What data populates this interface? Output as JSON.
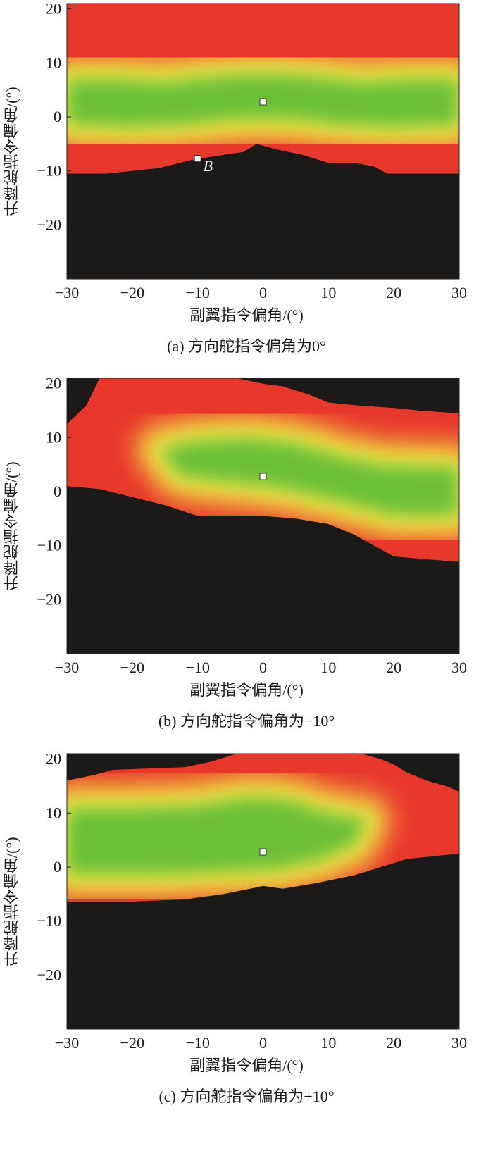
{
  "chart_data": [
    {
      "type": "heatmap",
      "caption": "(a) 方向舵指令偏角为0°",
      "xlabel": "副翼指令偏角/(°)",
      "ylabel": "升降舵指令偏角/(°)",
      "xlim": [
        -30,
        30
      ],
      "ylim": [
        -30,
        21
      ],
      "xticks": [
        -30,
        -20,
        -10,
        0,
        10,
        20,
        30
      ],
      "yticks": [
        -20,
        -10,
        0,
        10,
        20
      ],
      "colors": {
        "center": "#6cbf38",
        "mid": "#f2ea44",
        "outer": "#e8382c",
        "outside": "#1c1a19"
      },
      "upper_boundary": [
        [
          -30,
          21
        ],
        [
          30,
          21
        ]
      ],
      "lower_boundary": [
        [
          -30,
          -10.5
        ],
        [
          -24,
          -10.5
        ],
        [
          -16,
          -9.5
        ],
        [
          -11,
          -8
        ],
        [
          -6,
          -7
        ],
        [
          -3,
          -6.5
        ],
        [
          -1,
          -5
        ],
        [
          2,
          -6
        ],
        [
          6,
          -7
        ],
        [
          10,
          -8.5
        ],
        [
          14,
          -8.5
        ],
        [
          17,
          -9.2
        ],
        [
          19,
          -10.5
        ],
        [
          30,
          -10.5
        ]
      ],
      "green_core": [
        [
          -30,
          7
        ],
        [
          -22,
          7
        ],
        [
          -15,
          6.5
        ],
        [
          -8,
          7.5
        ],
        [
          0,
          8
        ],
        [
          8,
          7.5
        ],
        [
          15,
          6.5
        ],
        [
          22,
          7
        ],
        [
          30,
          7
        ],
        [
          30,
          -1.5
        ],
        [
          20,
          -2
        ],
        [
          12,
          -1.5
        ],
        [
          4,
          -0.5
        ],
        [
          0,
          -0.5
        ],
        [
          -4,
          -0.5
        ],
        [
          -12,
          -1.5
        ],
        [
          -20,
          -2
        ],
        [
          -30,
          -1.5
        ]
      ],
      "markers": [
        {
          "x": 0,
          "y": 2.8
        },
        {
          "x": -10,
          "y": -7.7,
          "label": "B"
        }
      ]
    },
    {
      "type": "heatmap",
      "caption": "(b) 方向舵指令偏角为−10°",
      "xlabel": "副翼指令偏角/(°)",
      "ylabel": "升降舵指令偏角/(°)",
      "xlim": [
        -30,
        30
      ],
      "ylim": [
        -30,
        21
      ],
      "xticks": [
        -30,
        -20,
        -10,
        0,
        10,
        20,
        30
      ],
      "yticks": [
        -20,
        -10,
        0,
        10,
        20
      ],
      "colors": {
        "center": "#6cbf38",
        "mid": "#f2ea44",
        "outer": "#e8382c",
        "outside": "#1c1a19"
      },
      "upper_boundary": [
        [
          -30,
          12.5
        ],
        [
          -27,
          16
        ],
        [
          -25,
          21
        ],
        [
          -4,
          21
        ],
        [
          0,
          20
        ],
        [
          3,
          19.5
        ],
        [
          7,
          18
        ],
        [
          10,
          16.5
        ],
        [
          14,
          16
        ],
        [
          20,
          15.5
        ],
        [
          24,
          15
        ],
        [
          30,
          14.5
        ]
      ],
      "lower_boundary": [
        [
          -30,
          1
        ],
        [
          -25,
          0.5
        ],
        [
          -20,
          -1
        ],
        [
          -15,
          -2.5
        ],
        [
          -10,
          -4.5
        ],
        [
          0,
          -4.5
        ],
        [
          5,
          -5
        ],
        [
          10,
          -6
        ],
        [
          14,
          -8
        ],
        [
          17,
          -10
        ],
        [
          20,
          -12
        ],
        [
          30,
          -13
        ]
      ],
      "green_core": [
        [
          -16,
          8
        ],
        [
          -10,
          9.5
        ],
        [
          -2,
          10
        ],
        [
          5,
          9
        ],
        [
          12,
          6.5
        ],
        [
          18,
          5
        ],
        [
          30,
          4.5
        ],
        [
          30,
          -4.5
        ],
        [
          20,
          -4.5
        ],
        [
          12,
          -2
        ],
        [
          5,
          0
        ],
        [
          0,
          1
        ],
        [
          -8,
          2
        ],
        [
          -13,
          3
        ]
      ],
      "markers": [
        {
          "x": 0,
          "y": 2.8
        }
      ]
    },
    {
      "type": "heatmap",
      "caption": "(c) 方向舵指令偏角为+10°",
      "xlabel": "副翼指令偏角/(°)",
      "ylabel": "升降舵指令偏角/(°)",
      "xlim": [
        -30,
        30
      ],
      "ylim": [
        -30,
        21
      ],
      "xticks": [
        -30,
        -20,
        -10,
        0,
        10,
        20,
        30
      ],
      "yticks": [
        -20,
        -10,
        0,
        10,
        20
      ],
      "colors": {
        "center": "#6cbf38",
        "mid": "#f2ea44",
        "outer": "#e8382c",
        "outside": "#1c1a19"
      },
      "upper_boundary": [
        [
          -30,
          16
        ],
        [
          -26,
          17
        ],
        [
          -23,
          18
        ],
        [
          -12,
          18.5
        ],
        [
          -8,
          19.5
        ],
        [
          -4,
          21
        ],
        [
          15,
          21
        ],
        [
          18,
          20
        ],
        [
          20,
          19
        ],
        [
          22,
          17.5
        ],
        [
          25,
          16
        ],
        [
          28,
          15
        ],
        [
          30,
          14
        ]
      ],
      "lower_boundary": [
        [
          -30,
          -6.5
        ],
        [
          -22,
          -6.5
        ],
        [
          -12,
          -6
        ],
        [
          -6,
          -5
        ],
        [
          -2,
          -4
        ],
        [
          0,
          -3.5
        ],
        [
          3,
          -4
        ],
        [
          8,
          -3
        ],
        [
          14,
          -1.5
        ],
        [
          18,
          0
        ],
        [
          22,
          1.5
        ],
        [
          26,
          2
        ],
        [
          30,
          2.5
        ]
      ],
      "green_core": [
        [
          -30,
          11
        ],
        [
          -20,
          11
        ],
        [
          -10,
          11.5
        ],
        [
          -2,
          13
        ],
        [
          4,
          12.5
        ],
        [
          10,
          10
        ],
        [
          16,
          9
        ],
        [
          14,
          4
        ],
        [
          8,
          1
        ],
        [
          2,
          -0.5
        ],
        [
          -6,
          -1
        ],
        [
          -16,
          -1.5
        ],
        [
          -30,
          -1.5
        ]
      ],
      "markers": [
        {
          "x": 0,
          "y": 2.8
        }
      ]
    }
  ]
}
